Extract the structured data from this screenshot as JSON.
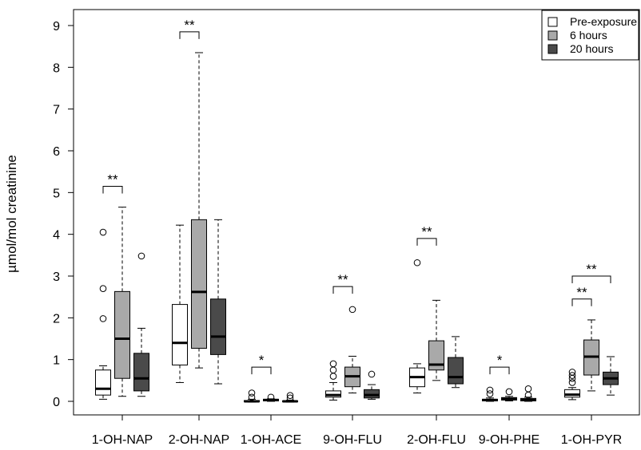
{
  "chart_data": {
    "type": "boxplot",
    "title": "",
    "ylabel": "µmol/mol creatinine",
    "xlabel": "",
    "ylim": [
      -0.2,
      9.4
    ],
    "yticks": [
      0,
      1,
      2,
      3,
      4,
      5,
      6,
      7,
      8,
      9
    ],
    "categories": [
      "1-OH-NAP",
      "2-OH-NAP",
      "1-OH-ACE",
      "9-OH-FLU",
      "2-OH-FLU",
      "9-OH-PHE",
      "1-OH-PYR"
    ],
    "legend": {
      "position": "top-right",
      "entries": [
        {
          "label": "Pre-exposure",
          "color": "#ffffff"
        },
        {
          "label": "6 hours",
          "color": "#a9a9a9"
        },
        {
          "label": "20 hours",
          "color": "#4a4a4a"
        }
      ]
    },
    "series": [
      {
        "name": "Pre-exposure",
        "color": "#ffffff",
        "boxes": [
          {
            "category": "1-OH-NAP",
            "whisker_low": 0.05,
            "q1": 0.15,
            "median": 0.3,
            "q3": 0.75,
            "whisker_high": 0.85,
            "outliers": [
              1.98,
              2.7,
              4.05
            ]
          },
          {
            "category": "2-OH-NAP",
            "whisker_low": 0.45,
            "q1": 0.87,
            "median": 1.4,
            "q3": 2.32,
            "whisker_high": 4.22,
            "outliers": []
          },
          {
            "category": "1-OH-ACE",
            "whisker_low": -0.02,
            "q1": -0.01,
            "median": 0.0,
            "q3": 0.02,
            "whisker_high": 0.05,
            "outliers": [
              0.1,
              0.2
            ]
          },
          {
            "category": "9-OH-FLU",
            "whisker_low": 0.03,
            "q1": 0.1,
            "median": 0.15,
            "q3": 0.25,
            "whisker_high": 0.45,
            "outliers": [
              0.6,
              0.75,
              0.9
            ]
          },
          {
            "category": "2-OH-FLU",
            "whisker_low": 0.2,
            "q1": 0.35,
            "median": 0.58,
            "q3": 0.8,
            "whisker_high": 0.9,
            "outliers": [
              3.32
            ]
          },
          {
            "category": "9-OH-PHE",
            "whisker_low": 0.0,
            "q1": 0.01,
            "median": 0.03,
            "q3": 0.05,
            "whisker_high": 0.08,
            "outliers": [
              0.18,
              0.27
            ]
          },
          {
            "category": "1-OH-PYR",
            "whisker_low": 0.04,
            "q1": 0.1,
            "median": 0.16,
            "q3": 0.28,
            "whisker_high": 0.33,
            "outliers": [
              0.45,
              0.55,
              0.62,
              0.7
            ]
          }
        ]
      },
      {
        "name": "6 hours",
        "color": "#a9a9a9",
        "boxes": [
          {
            "category": "1-OH-NAP",
            "whisker_low": 0.12,
            "q1": 0.55,
            "median": 1.5,
            "q3": 2.63,
            "whisker_high": 4.65,
            "outliers": []
          },
          {
            "category": "2-OH-NAP",
            "whisker_low": 0.8,
            "q1": 1.27,
            "median": 2.62,
            "q3": 4.35,
            "whisker_high": 8.35,
            "outliers": []
          },
          {
            "category": "1-OH-ACE",
            "whisker_low": 0.0,
            "q1": 0.01,
            "median": 0.03,
            "q3": 0.05,
            "whisker_high": 0.06,
            "outliers": [
              0.1
            ]
          },
          {
            "category": "9-OH-FLU",
            "whisker_low": 0.2,
            "q1": 0.35,
            "median": 0.6,
            "q3": 0.82,
            "whisker_high": 1.08,
            "outliers": [
              2.2
            ]
          },
          {
            "category": "2-OH-FLU",
            "whisker_low": 0.5,
            "q1": 0.75,
            "median": 0.88,
            "q3": 1.45,
            "whisker_high": 2.42,
            "outliers": []
          },
          {
            "category": "9-OH-PHE",
            "whisker_low": 0.01,
            "q1": 0.03,
            "median": 0.06,
            "q3": 0.09,
            "whisker_high": 0.12,
            "outliers": [
              0.23
            ]
          },
          {
            "category": "1-OH-PYR",
            "whisker_low": 0.25,
            "q1": 0.63,
            "median": 1.07,
            "q3": 1.47,
            "whisker_high": 1.95,
            "outliers": []
          }
        ]
      },
      {
        "name": "20 hours",
        "color": "#4a4a4a",
        "boxes": [
          {
            "category": "1-OH-NAP",
            "whisker_low": 0.12,
            "q1": 0.25,
            "median": 0.55,
            "q3": 1.15,
            "whisker_high": 1.75,
            "outliers": [
              3.48
            ]
          },
          {
            "category": "2-OH-NAP",
            "whisker_low": 0.42,
            "q1": 1.12,
            "median": 1.55,
            "q3": 2.45,
            "whisker_high": 4.35,
            "outliers": []
          },
          {
            "category": "1-OH-ACE",
            "whisker_low": -0.02,
            "q1": -0.01,
            "median": 0.0,
            "q3": 0.01,
            "whisker_high": 0.03,
            "outliers": [
              0.08,
              0.14
            ]
          },
          {
            "category": "9-OH-FLU",
            "whisker_low": 0.05,
            "q1": 0.08,
            "median": 0.15,
            "q3": 0.28,
            "whisker_high": 0.4,
            "outliers": [
              0.65
            ]
          },
          {
            "category": "2-OH-FLU",
            "whisker_low": 0.33,
            "q1": 0.42,
            "median": 0.58,
            "q3": 1.05,
            "whisker_high": 1.55,
            "outliers": []
          },
          {
            "category": "9-OH-PHE",
            "whisker_low": 0.0,
            "q1": 0.01,
            "median": 0.03,
            "q3": 0.07,
            "whisker_high": 0.1,
            "outliers": [
              0.15,
              0.3
            ]
          },
          {
            "category": "1-OH-PYR",
            "whisker_low": 0.15,
            "q1": 0.4,
            "median": 0.55,
            "q3": 0.7,
            "whisker_high": 1.07,
            "outliers": []
          }
        ]
      }
    ],
    "significance": [
      {
        "category": "1-OH-NAP",
        "from": "Pre-exposure",
        "to": "6 hours",
        "label": "**",
        "y": 5.15
      },
      {
        "category": "2-OH-NAP",
        "from": "Pre-exposure",
        "to": "6 hours",
        "label": "**",
        "y": 8.85
      },
      {
        "category": "1-OH-ACE",
        "from": "Pre-exposure",
        "to": "6 hours",
        "label": "*",
        "y": 0.82
      },
      {
        "category": "9-OH-FLU",
        "from": "Pre-exposure",
        "to": "6 hours",
        "label": "**",
        "y": 2.75
      },
      {
        "category": "2-OH-FLU",
        "from": "Pre-exposure",
        "to": "6 hours",
        "label": "**",
        "y": 3.9
      },
      {
        "category": "9-OH-PHE",
        "from": "Pre-exposure",
        "to": "6 hours",
        "label": "*",
        "y": 0.82
      },
      {
        "category": "1-OH-PYR",
        "from": "Pre-exposure",
        "to": "6 hours",
        "label": "**",
        "y": 2.45
      },
      {
        "category": "1-OH-PYR",
        "from": "Pre-exposure",
        "to": "20 hours",
        "label": "**",
        "y": 3.0
      }
    ]
  }
}
